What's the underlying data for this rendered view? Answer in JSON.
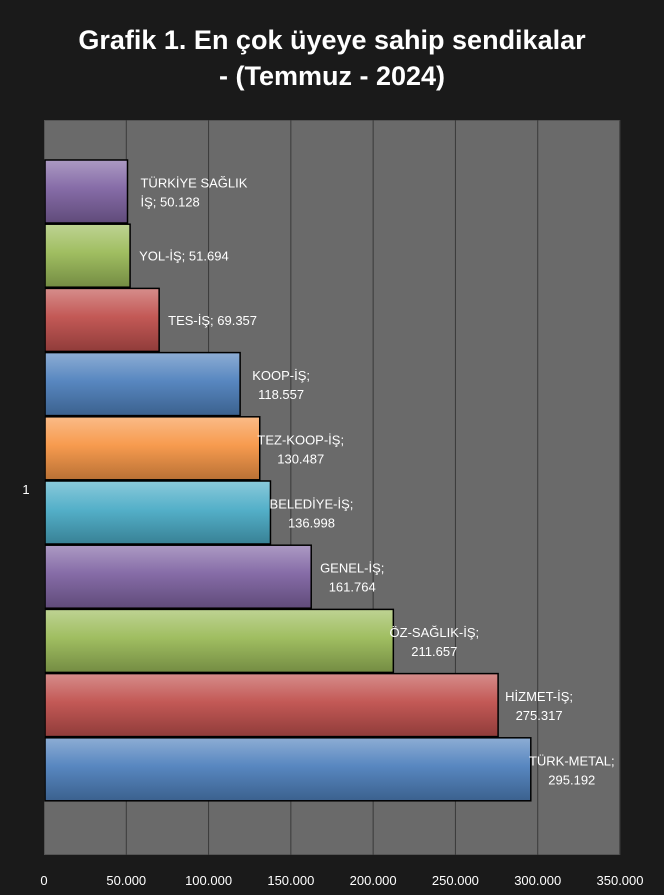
{
  "chart_data": {
    "type": "bar",
    "orientation": "horizontal",
    "title_lines": [
      "Grafik 1. En çok üyeye sahip sendikalar",
      "- (Temmuz - 2024)"
    ],
    "y_category_label": "1",
    "xlim": [
      0,
      350000
    ],
    "x_ticks": [
      0,
      50000,
      100000,
      150000,
      200000,
      250000,
      300000,
      350000
    ],
    "x_tick_labels": [
      "0",
      "50.000",
      "100.000",
      "150.000",
      "200.000",
      "250.000",
      "300.000",
      "350.000"
    ],
    "grid": true,
    "legend": "none",
    "bars": [
      {
        "name": "TÜRKİYE SAĞLIK İŞ",
        "value": 50128,
        "label_lines": [
          "TÜRKİYE SAĞLIK",
          "İŞ; 50.128"
        ],
        "color": "#8064a2"
      },
      {
        "name": "YOL-İŞ",
        "value": 51694,
        "label_lines": [
          "YOL-İŞ; 51.694"
        ],
        "color": "#9bbb59"
      },
      {
        "name": "TES-İŞ",
        "value": 69357,
        "label_lines": [
          "TES-İŞ; 69.357"
        ],
        "color": "#c0504d"
      },
      {
        "name": "KOOP-İŞ",
        "value": 118557,
        "label_lines": [
          "KOOP-İŞ;",
          "118.557"
        ],
        "color": "#4f81bd"
      },
      {
        "name": "TEZ-KOOP-İŞ",
        "value": 130487,
        "label_lines": [
          "TEZ-KOOP-İŞ;",
          "130.487"
        ],
        "color": "#f79646"
      },
      {
        "name": "BELEDİYE-İŞ",
        "value": 136998,
        "label_lines": [
          "BELEDİYE-İŞ;",
          "136.998"
        ],
        "color": "#4bacc6"
      },
      {
        "name": "GENEL-İŞ",
        "value": 161764,
        "label_lines": [
          "GENEL-İŞ;",
          "161.764"
        ],
        "color": "#8064a2"
      },
      {
        "name": "ÖZ-SAĞLIK-İŞ",
        "value": 211657,
        "label_lines": [
          "ÖZ-SAĞLIK-İŞ;",
          "211.657"
        ],
        "color": "#9bbb59"
      },
      {
        "name": "HİZMET-İŞ",
        "value": 275317,
        "label_lines": [
          "HİZMET-İŞ;",
          "275.317"
        ],
        "color": "#c0504d"
      },
      {
        "name": "TÜRK-METAL",
        "value": 295192,
        "label_lines": [
          "TÜRK-METAL;",
          "295.192"
        ],
        "color": "#4f81bd"
      }
    ]
  }
}
